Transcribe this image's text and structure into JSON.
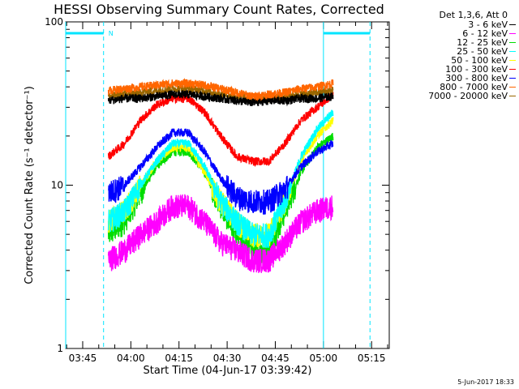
{
  "chart_data": {
    "type": "line",
    "title": "HESSI Observing Summary Count Rates, Corrected",
    "xlabel": "Start Time (04-Jun-17 03:39:42)",
    "ylabel": "Corrected Count Rate (s⁻¹ detector⁻¹)",
    "yscale": "log",
    "ylim": [
      1,
      100
    ],
    "xlim": [
      "03:39:42",
      "05:20:30"
    ],
    "yticks": [
      "1",
      "10",
      "100"
    ],
    "xticks": [
      "03:45",
      "04:00",
      "04:15",
      "04:30",
      "04:45",
      "05:00",
      "05:15"
    ],
    "legend_title": "Det 1,3,6, Att 0",
    "legend_position": "top-right",
    "footer": "5-Jun-2017 18:33",
    "night_label": "N",
    "data_gaps": [
      [
        "03:39:42",
        "03:51:30"
      ],
      [
        "05:00:00",
        "05:14:30"
      ]
    ],
    "x": [
      "03:53",
      "03:58",
      "04:03",
      "04:08",
      "04:13",
      "04:18",
      "04:23",
      "04:28",
      "04:33",
      "04:38",
      "04:43",
      "04:48",
      "04:53",
      "04:58",
      "05:03"
    ],
    "series": [
      {
        "name": "3 - 6 keV",
        "color": "#000000",
        "values": [
          33,
          34,
          34,
          35,
          36,
          36,
          35,
          34,
          33,
          32,
          33,
          33,
          34,
          34,
          35
        ]
      },
      {
        "name": "6 - 12 keV",
        "color": "#ff00ff",
        "values": [
          3.5,
          4,
          5,
          6,
          7.5,
          7.5,
          6,
          4.5,
          4,
          3.5,
          3.5,
          4.5,
          6,
          7,
          7.5
        ]
      },
      {
        "name": "12 - 25 keV",
        "color": "#00dd00",
        "values": [
          5,
          6,
          9,
          13,
          16,
          16,
          12,
          7.5,
          5,
          4,
          4,
          7,
          12,
          17,
          20
        ]
      },
      {
        "name": "25 - 50 keV",
        "color": "#00ffff",
        "values": [
          6,
          7,
          10,
          14,
          18,
          18,
          13,
          8,
          6,
          5,
          5,
          8,
          15,
          22,
          28
        ]
      },
      {
        "name": "50 - 100 keV",
        "color": "#ffff00",
        "values": [
          6,
          7,
          10,
          14,
          17,
          17,
          12,
          8,
          6,
          5,
          5,
          8,
          14,
          20,
          25
        ]
      },
      {
        "name": "100 - 300 keV",
        "color": "#ff0000",
        "values": [
          15,
          18,
          25,
          31,
          34,
          34,
          28,
          20,
          15,
          14,
          14,
          18,
          25,
          30,
          36
        ]
      },
      {
        "name": "300 - 800 keV",
        "color": "#0000ff",
        "values": [
          9,
          10,
          13,
          17,
          21,
          21,
          16,
          11,
          8.5,
          8,
          8,
          9.5,
          13,
          16,
          18
        ]
      },
      {
        "name": "800 - 7000 keV",
        "color": "#ff6600",
        "values": [
          38,
          39,
          40,
          41,
          42,
          42,
          41,
          39,
          37,
          35,
          36,
          37,
          39,
          40,
          42
        ]
      },
      {
        "name": "7000 - 20000 keV",
        "color": "#996600",
        "values": [
          35,
          36,
          37,
          38,
          39,
          39,
          38,
          36,
          35,
          34,
          34,
          35,
          36,
          37,
          38
        ]
      }
    ]
  }
}
